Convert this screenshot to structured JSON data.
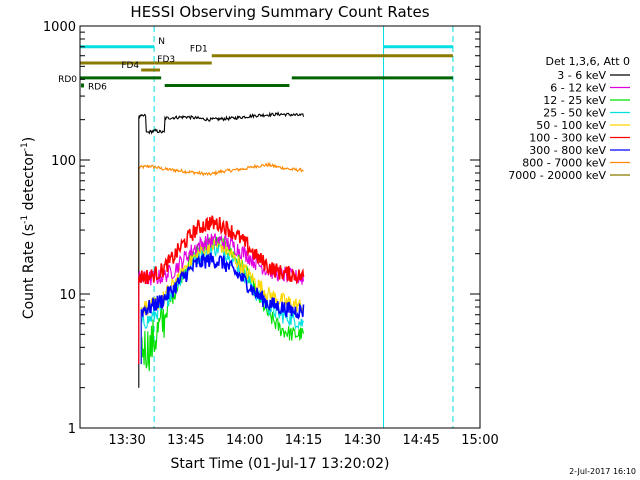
{
  "chart_data": {
    "type": "line",
    "title": "HESSI Observing Summary Count Rates",
    "xlabel": "Start Time (01-Jul-17 13:20:02)",
    "ylabel_main": "Count Rate (s",
    "ylabel_sup": "-1",
    "ylabel_mid": " detector",
    "ylabel_end": ")",
    "y_scale": "log",
    "ylim": [
      1,
      1000
    ],
    "xlim_minutes": [
      13.3,
      15.0
    ],
    "y_ticks": [
      {
        "v": 1,
        "label": "1"
      },
      {
        "v": 10,
        "label": "10"
      },
      {
        "v": 100,
        "label": "100"
      },
      {
        "v": 1000,
        "label": "1000"
      }
    ],
    "x_ticks": [
      {
        "t": 13.5,
        "label": "13:30"
      },
      {
        "t": 13.75,
        "label": "13:45"
      },
      {
        "t": 14.0,
        "label": "14:00"
      },
      {
        "t": 14.25,
        "label": "14:15"
      },
      {
        "t": 14.5,
        "label": "14:30"
      },
      {
        "t": 14.75,
        "label": "14:45"
      },
      {
        "t": 15.0,
        "label": "15:00"
      }
    ],
    "legend_header": "Det 1,3,6, Att 0",
    "legend_position": "right",
    "series": [
      {
        "name": "3 - 6 keV",
        "color": "#000000",
        "points": [
          [
            13.55,
            210
          ],
          [
            13.58,
            215
          ],
          [
            13.58,
            160
          ],
          [
            13.62,
            165
          ],
          [
            13.66,
            160
          ],
          [
            13.66,
            205
          ],
          [
            13.75,
            210
          ],
          [
            13.85,
            200
          ],
          [
            13.95,
            205
          ],
          [
            14.05,
            215
          ],
          [
            14.15,
            220
          ],
          [
            14.25,
            215
          ]
        ]
      },
      {
        "name": "6 - 12 keV",
        "color": "#e000e0",
        "points": [
          [
            13.55,
            13
          ],
          [
            13.6,
            13
          ],
          [
            13.65,
            13.5
          ],
          [
            13.7,
            15
          ],
          [
            13.75,
            19
          ],
          [
            13.8,
            23
          ],
          [
            13.85,
            25
          ],
          [
            13.9,
            25
          ],
          [
            13.95,
            23
          ],
          [
            14.0,
            20
          ],
          [
            14.05,
            17
          ],
          [
            14.1,
            15
          ],
          [
            14.15,
            14
          ],
          [
            14.2,
            13.5
          ],
          [
            14.25,
            13
          ]
        ]
      },
      {
        "name": "12 - 25 keV",
        "color": "#00e000",
        "points": [
          [
            13.56,
            4
          ],
          [
            13.6,
            4
          ],
          [
            13.65,
            6
          ],
          [
            13.7,
            10
          ],
          [
            13.75,
            16
          ],
          [
            13.8,
            21
          ],
          [
            13.85,
            24
          ],
          [
            13.9,
            24
          ],
          [
            13.95,
            20
          ],
          [
            14.0,
            15
          ],
          [
            14.05,
            10
          ],
          [
            14.1,
            7
          ],
          [
            14.15,
            5.5
          ],
          [
            14.2,
            5
          ],
          [
            14.25,
            5
          ]
        ]
      },
      {
        "name": "25 - 50 keV",
        "color": "#00e0e0",
        "points": [
          [
            13.56,
            6
          ],
          [
            13.6,
            6.5
          ],
          [
            13.65,
            8
          ],
          [
            13.7,
            11
          ],
          [
            13.75,
            15
          ],
          [
            13.8,
            19
          ],
          [
            13.85,
            22
          ],
          [
            13.9,
            22
          ],
          [
            13.95,
            18
          ],
          [
            14.0,
            14
          ],
          [
            14.05,
            10
          ],
          [
            14.1,
            8
          ],
          [
            14.15,
            7
          ],
          [
            14.2,
            6.5
          ],
          [
            14.25,
            6
          ]
        ]
      },
      {
        "name": "50 - 100 keV",
        "color": "#ffd700",
        "points": [
          [
            13.56,
            8
          ],
          [
            13.6,
            8
          ],
          [
            13.65,
            9
          ],
          [
            13.7,
            12
          ],
          [
            13.75,
            16
          ],
          [
            13.8,
            20
          ],
          [
            13.85,
            23
          ],
          [
            13.9,
            23
          ],
          [
            13.95,
            19
          ],
          [
            14.0,
            15
          ],
          [
            14.05,
            12
          ],
          [
            14.1,
            10
          ],
          [
            14.15,
            9
          ],
          [
            14.2,
            8.5
          ],
          [
            14.25,
            8
          ]
        ]
      },
      {
        "name": "100 - 300 keV",
        "color": "#ff0000",
        "points": [
          [
            13.55,
            13.5
          ],
          [
            13.6,
            13.5
          ],
          [
            13.65,
            15
          ],
          [
            13.7,
            19
          ],
          [
            13.75,
            25
          ],
          [
            13.8,
            31
          ],
          [
            13.85,
            34
          ],
          [
            13.9,
            33
          ],
          [
            13.95,
            29
          ],
          [
            14.0,
            24
          ],
          [
            14.05,
            19
          ],
          [
            14.1,
            16
          ],
          [
            14.15,
            14.5
          ],
          [
            14.2,
            14
          ],
          [
            14.25,
            13.5
          ]
        ]
      },
      {
        "name": "300 - 800 keV",
        "color": "#0000ff",
        "points": [
          [
            13.56,
            7.5
          ],
          [
            13.6,
            8
          ],
          [
            13.65,
            9
          ],
          [
            13.7,
            11
          ],
          [
            13.75,
            14
          ],
          [
            13.8,
            17
          ],
          [
            13.85,
            18
          ],
          [
            13.9,
            17.5
          ],
          [
            13.95,
            15
          ],
          [
            14.0,
            12.5
          ],
          [
            14.05,
            10
          ],
          [
            14.1,
            8.5
          ],
          [
            14.15,
            8
          ],
          [
            14.2,
            7.5
          ],
          [
            14.25,
            7.5
          ]
        ]
      },
      {
        "name": "800 - 7000 keV",
        "color": "#ff8800",
        "points": [
          [
            13.55,
            88
          ],
          [
            13.6,
            90
          ],
          [
            13.65,
            86
          ],
          [
            13.7,
            84
          ],
          [
            13.75,
            82
          ],
          [
            13.8,
            80
          ],
          [
            13.85,
            78
          ],
          [
            13.9,
            82
          ],
          [
            13.95,
            84
          ],
          [
            14.0,
            86
          ],
          [
            14.05,
            90
          ],
          [
            14.1,
            92
          ],
          [
            14.15,
            88
          ],
          [
            14.2,
            85
          ],
          [
            14.25,
            84
          ]
        ]
      },
      {
        "name": "7000 - 20000 keV",
        "color": "#8b7a00",
        "points": []
      }
    ],
    "vertical_lines": [
      {
        "t": 13.3,
        "style": "solid",
        "color": "#00e0e0"
      },
      {
        "t": 13.615,
        "style": "dashed",
        "color": "#00e0e0"
      },
      {
        "t": 14.59,
        "style": "solid",
        "color": "#00e0e0"
      },
      {
        "t": 14.885,
        "style": "dashed",
        "color": "#00e0e0"
      }
    ],
    "status_bars": [
      {
        "label": "N",
        "color": "#00e0e0",
        "y": 700,
        "segments": [
          [
            13.3,
            13.615
          ],
          [
            14.59,
            14.885
          ]
        ]
      },
      {
        "label": "FD1",
        "color": "#8b7a00",
        "y": 600,
        "segments": [
          [
            13.86,
            14.885
          ]
        ]
      },
      {
        "label": "FD3",
        "color": "#8b7a00",
        "y": 530,
        "segments": [
          [
            13.3,
            13.615
          ],
          [
            13.615,
            13.86
          ]
        ]
      },
      {
        "label": "FD4",
        "color": "#8b7a00",
        "y": 470,
        "segments": [
          [
            13.56,
            13.64
          ]
        ]
      },
      {
        "label": "RD0",
        "color": "#006400",
        "y": 410,
        "segments": [
          [
            13.3,
            13.645
          ],
          [
            14.2,
            14.885
          ]
        ]
      },
      {
        "label": "RD6",
        "color": "#006400",
        "y": 360,
        "segments": [
          [
            13.66,
            14.19
          ]
        ]
      }
    ],
    "grid": false
  },
  "footer": {
    "date_stamp": "2-Jul-2017 16:10"
  }
}
